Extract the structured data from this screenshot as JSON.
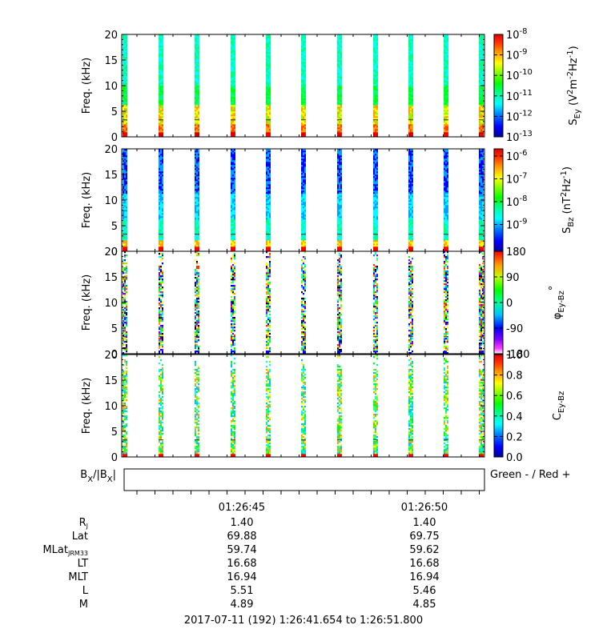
{
  "panels": [
    {
      "ylabel": "Freq. (kHz)",
      "yticks": [
        "0",
        "5",
        "10",
        "15",
        "20"
      ],
      "ylim": [
        0,
        20
      ],
      "cbar": {
        "label": "S",
        "label_sub": "Ey",
        "label_tail": " (V",
        "label_sup1": "2",
        "label_mid": "m",
        "label_sup2": "-2",
        "label_mid2": "Hz",
        "label_sup3": "-1",
        "label_end": ")",
        "scale": "log",
        "ticks": [
          {
            "base": "10",
            "exp": "-8"
          },
          {
            "base": "10",
            "exp": "-9"
          },
          {
            "base": "10",
            "exp": "-10"
          },
          {
            "base": "10",
            "exp": "-11"
          },
          {
            "base": "10",
            "exp": "-12"
          },
          {
            "base": "10",
            "exp": "-13"
          }
        ]
      }
    },
    {
      "ylabel": "Freq. (kHz)",
      "yticks": [
        "0",
        "5",
        "10",
        "15",
        "20"
      ],
      "ylim": [
        0,
        20
      ],
      "cbar": {
        "label": "S",
        "label_sub": "Bz",
        "label_tail": " (nT",
        "label_sup1": "2",
        "label_mid": "Hz",
        "label_sup2": "-1",
        "label_end": ")",
        "scale": "log",
        "ticks": [
          {
            "base": "10",
            "exp": "-6"
          },
          {
            "base": "10",
            "exp": "-7"
          },
          {
            "base": "10",
            "exp": "-8"
          },
          {
            "base": "10",
            "exp": "-9"
          }
        ]
      }
    },
    {
      "ylabel": "Freq. (kHz)",
      "yticks": [
        "0",
        "5",
        "10",
        "15",
        "20"
      ],
      "ylim": [
        0,
        20
      ],
      "cbar": {
        "label": "φ",
        "label_sub": "Ey-Bz",
        "label_end": "°",
        "scale": "linear",
        "ticks": [
          "180",
          "90",
          "0",
          "-90",
          "-180"
        ]
      }
    },
    {
      "ylabel": "Freq. (kHz)",
      "yticks": [
        "0",
        "5",
        "10",
        "15",
        "20"
      ],
      "ylim": [
        0,
        20
      ],
      "cbar": {
        "label": "C",
        "label_sub": "Ey-Bz",
        "scale": "linear",
        "ticks": [
          "1.0",
          "0.8",
          "0.6",
          "0.4",
          "0.2",
          "0.0"
        ]
      }
    }
  ],
  "bx_panel": {
    "label": "B",
    "label_sub1": "X",
    "label_mid": "/|B",
    "label_sub2": "X",
    "label_end": "|",
    "legend": "Green - / Red +"
  },
  "time_labels": [
    "01:26:45",
    "01:26:50"
  ],
  "ephemeris": [
    {
      "label": "R",
      "label_sub": "J",
      "values": [
        "1.40",
        "1.40"
      ]
    },
    {
      "label": "Lat",
      "label_sub": "",
      "values": [
        "69.88",
        "69.75"
      ]
    },
    {
      "label": "MLat",
      "label_sub": "JRM33",
      "values": [
        "59.74",
        "59.62"
      ]
    },
    {
      "label": "LT",
      "label_sub": "",
      "values": [
        "16.68",
        "16.68"
      ]
    },
    {
      "label": "MLT",
      "label_sub": "",
      "values": [
        "16.94",
        "16.94"
      ]
    },
    {
      "label": "L",
      "label_sub": "",
      "values": [
        "5.51",
        "5.46"
      ]
    },
    {
      "label": "M",
      "label_sub": "",
      "values": [
        "4.89",
        "4.85"
      ]
    }
  ],
  "footer": "2017-07-11 (192) 1:26:41.654 to 1:26:51.800",
  "chart_data": {
    "type": "heatmap",
    "x_range_label": "2017-07-11 (192) 1:26:41.654 to 1:26:51.800",
    "burst_count": 11,
    "ylim": [
      0,
      20
    ],
    "ylabel": "Freq. (kHz)",
    "panels": [
      "S_Ey spectral density",
      "S_Bz spectral density",
      "φ Ey-Bz phase",
      "C Ey-Bz coherence"
    ]
  },
  "colors": {
    "rainbow": [
      "#0000a0",
      "#0000ff",
      "#00a0ff",
      "#00ffff",
      "#00ff80",
      "#00ff00",
      "#80ff00",
      "#ffff00",
      "#ffa000",
      "#ff4000",
      "#ff0000",
      "#c80000"
    ]
  }
}
